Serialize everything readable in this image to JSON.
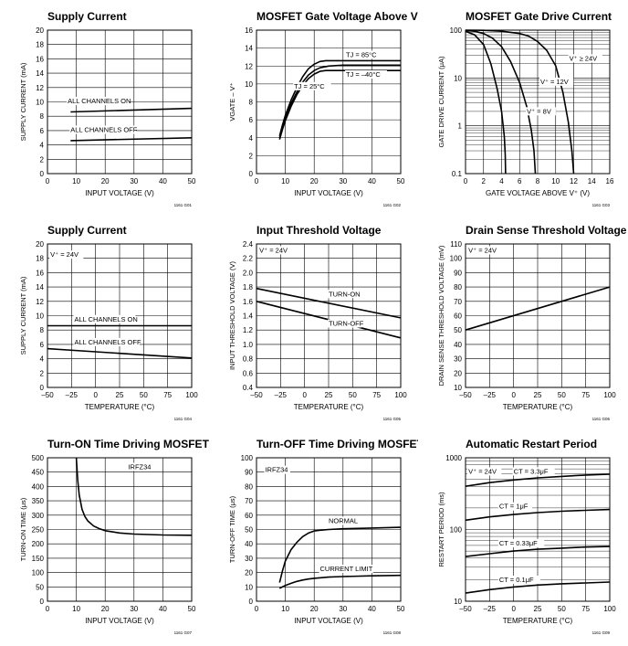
{
  "chart_data": [
    {
      "id": "c1",
      "type": "line",
      "title": "Supply Current",
      "xlabel": "INPUT VOLTAGE (V)",
      "ylabel": "SUPPLY CURRENT (mA)",
      "xlim": [
        0,
        50
      ],
      "ylim": [
        0,
        20
      ],
      "xticks": [
        "0",
        "10",
        "20",
        "30",
        "40",
        "50"
      ],
      "yticks": [
        "0",
        "2",
        "4",
        "6",
        "8",
        "10",
        "12",
        "14",
        "16",
        "18",
        "20"
      ],
      "grid": true,
      "code": "1161 G01",
      "series": [
        {
          "name": "ALL CHANNELS ON",
          "x": [
            8,
            50
          ],
          "y": [
            8.6,
            9.1
          ]
        },
        {
          "name": "ALL CHANNELS OFF",
          "x": [
            8,
            50
          ],
          "y": [
            4.6,
            5.0
          ]
        }
      ]
    },
    {
      "id": "c2",
      "type": "line",
      "title": "MOSFET Gate Voltage Above V⁺",
      "xlabel": "INPUT VOLTAGE (V)",
      "ylabel": "VGATE – V⁺",
      "xlim": [
        0,
        50
      ],
      "ylim": [
        0,
        16
      ],
      "xticks": [
        "0",
        "10",
        "20",
        "30",
        "40",
        "50"
      ],
      "yticks": [
        "0",
        "2",
        "4",
        "6",
        "8",
        "10",
        "12",
        "14",
        "16"
      ],
      "grid": true,
      "code": "1161 G02",
      "series": [
        {
          "name": "TJ = 85°C",
          "x": [
            8,
            9,
            10,
            12,
            14,
            16,
            18,
            20,
            22,
            24,
            28,
            35,
            50
          ],
          "y": [
            4.2,
            5.4,
            6.5,
            8.2,
            9.6,
            10.8,
            11.7,
            12.2,
            12.5,
            12.6,
            12.6,
            12.6,
            12.6
          ]
        },
        {
          "name": "TJ = –40°C",
          "x": [
            8,
            9,
            10,
            12,
            14,
            16,
            18,
            20,
            22,
            25,
            30,
            40,
            50
          ],
          "y": [
            4.0,
            5.1,
            6.2,
            7.8,
            9.1,
            10.2,
            11.0,
            11.5,
            11.8,
            12.0,
            12.1,
            12.1,
            12.1
          ]
        },
        {
          "name": "TJ = 25°C",
          "x": [
            8,
            9,
            10,
            12,
            14,
            16,
            18,
            20,
            22,
            24,
            28,
            35,
            50
          ],
          "y": [
            3.8,
            4.9,
            5.9,
            7.5,
            8.8,
            9.8,
            10.6,
            11.1,
            11.4,
            11.5,
            11.5,
            11.5,
            11.5
          ]
        }
      ]
    },
    {
      "id": "c3",
      "type": "line",
      "title": "MOSFET Gate Drive Current",
      "xlabel": "GATE VOLTAGE ABOVE V⁺ (V)",
      "ylabel": "GATE DRIVE CURRENT (μA)",
      "xlim": [
        0,
        16
      ],
      "ylim": [
        0.1,
        100
      ],
      "yscale": "log",
      "xticks": [
        "0",
        "2",
        "4",
        "6",
        "8",
        "10",
        "12",
        "14",
        "16"
      ],
      "yticks": [
        "0.1",
        "1",
        "10",
        "100"
      ],
      "grid": true,
      "code": "1161 G03",
      "series": [
        {
          "name": "V⁺ = 8V",
          "x": [
            0,
            1,
            2,
            2.8,
            3.5,
            4.0,
            4.3,
            4.4,
            4.45
          ],
          "y": [
            95,
            80,
            50,
            20,
            6,
            2,
            0.6,
            0.25,
            0.1
          ]
        },
        {
          "name": "V⁺ = 12V",
          "x": [
            0,
            1,
            2,
            3,
            4,
            5,
            6,
            6.8,
            7.3,
            7.6,
            7.75
          ],
          "y": [
            98,
            95,
            85,
            68,
            45,
            22,
            8,
            2.5,
            0.8,
            0.3,
            0.1
          ]
        },
        {
          "name": "V⁺ ≥ 24V",
          "x": [
            0,
            2,
            4,
            6,
            7,
            8,
            9,
            10,
            10.8,
            11.4,
            11.8,
            12.0
          ],
          "y": [
            100,
            99,
            95,
            85,
            75,
            58,
            38,
            18,
            5,
            1.2,
            0.3,
            0.1
          ]
        }
      ]
    },
    {
      "id": "c4",
      "type": "line",
      "title": "Supply Current",
      "xlabel": "TEMPERATURE (°C)",
      "ylabel": "SUPPLY CURRENT (mA)",
      "xlim": [
        -50,
        100
      ],
      "ylim": [
        0,
        20
      ],
      "xticks": [
        "–50",
        "–25",
        "0",
        "25",
        "50",
        "75",
        "100"
      ],
      "yticks": [
        "0",
        "2",
        "4",
        "6",
        "8",
        "10",
        "12",
        "14",
        "16",
        "18",
        "20"
      ],
      "grid": true,
      "code": "1161 G04",
      "annotation": "V⁺ = 24V",
      "series": [
        {
          "name": "ALL CHANNELS ON",
          "x": [
            -50,
            100
          ],
          "y": [
            8.6,
            8.6
          ]
        },
        {
          "name": "ALL CHANNELS OFF",
          "x": [
            -50,
            100
          ],
          "y": [
            5.4,
            4.1
          ]
        }
      ]
    },
    {
      "id": "c5",
      "type": "line",
      "title": "Input Threshold Voltage",
      "xlabel": "TEMPERATURE (°C)",
      "ylabel": "INPUT THRESHOLD VOLTAGE (V)",
      "xlim": [
        -50,
        100
      ],
      "ylim": [
        0.4,
        2.4
      ],
      "xticks": [
        "–50",
        "–25",
        "0",
        "25",
        "50",
        "75",
        "100"
      ],
      "yticks": [
        "0.4",
        "0.6",
        "0.8",
        "1.0",
        "1.2",
        "1.4",
        "1.6",
        "1.8",
        "2.0",
        "2.2",
        "2.4"
      ],
      "grid": true,
      "code": "1161 G05",
      "annotation": "V⁺ = 24V",
      "series": [
        {
          "name": "TURN-ON",
          "x": [
            -50,
            100
          ],
          "y": [
            1.78,
            1.37
          ]
        },
        {
          "name": "TURN-OFF",
          "x": [
            -50,
            100
          ],
          "y": [
            1.6,
            1.09
          ]
        }
      ]
    },
    {
      "id": "c6",
      "type": "line",
      "title": "Drain Sense Threshold Voltage",
      "xlabel": "TEMPERATURE (°C)",
      "ylabel": "DRAIN SENSE THRESHOLD VOLTAGE (mV)",
      "xlim": [
        -50,
        100
      ],
      "ylim": [
        10,
        110
      ],
      "xticks": [
        "–50",
        "–25",
        "0",
        "25",
        "50",
        "75",
        "100"
      ],
      "yticks": [
        "10",
        "20",
        "30",
        "40",
        "50",
        "60",
        "70",
        "80",
        "90",
        "100",
        "110"
      ],
      "grid": true,
      "code": "1161 G06",
      "annotation": "V⁺ = 24V",
      "series": [
        {
          "name": "",
          "x": [
            -50,
            100
          ],
          "y": [
            50,
            80
          ]
        }
      ]
    },
    {
      "id": "c7",
      "type": "line",
      "title": "Turn-ON Time Driving MOSFET",
      "xlabel": "INPUT VOLTAGE (V)",
      "ylabel": "TURN-ON TIME (μs)",
      "xlim": [
        0,
        50
      ],
      "ylim": [
        0,
        500
      ],
      "xticks": [
        "0",
        "10",
        "20",
        "30",
        "40",
        "50"
      ],
      "yticks": [
        "0",
        "50",
        "100",
        "150",
        "200",
        "250",
        "300",
        "350",
        "400",
        "450",
        "500"
      ],
      "grid": true,
      "code": "1161 G07",
      "annotation": "IRFZ34",
      "series": [
        {
          "name": "",
          "x": [
            10,
            10.5,
            11,
            12,
            13,
            14,
            16,
            18,
            20,
            25,
            30,
            40,
            50
          ],
          "y": [
            500,
            420,
            370,
            320,
            295,
            280,
            262,
            253,
            246,
            238,
            234,
            231,
            230
          ]
        }
      ]
    },
    {
      "id": "c8",
      "type": "line",
      "title": "Turn-OFF Time Driving MOSFET",
      "xlabel": "INPUT VOLTAGE (V)",
      "ylabel": "TURN-OFF TIME (μs)",
      "xlim": [
        0,
        50
      ],
      "ylim": [
        0,
        100
      ],
      "xticks": [
        "0",
        "10",
        "20",
        "30",
        "40",
        "50"
      ],
      "yticks": [
        "0",
        "10",
        "20",
        "30",
        "40",
        "50",
        "60",
        "70",
        "80",
        "90",
        "100"
      ],
      "grid": true,
      "code": "1161 G08",
      "annotation": "IRFZ34",
      "series": [
        {
          "name": "NORMAL",
          "x": [
            8,
            9,
            10,
            12,
            14,
            16,
            18,
            20,
            22,
            25,
            30,
            40,
            50
          ],
          "y": [
            13,
            21,
            28,
            36,
            41,
            45,
            47.5,
            49,
            49.5,
            50,
            50.5,
            51,
            51.5
          ]
        },
        {
          "name": "CURRENT LIMIT",
          "x": [
            8,
            10,
            12,
            14,
            16,
            18,
            20,
            25,
            30,
            40,
            50
          ],
          "y": [
            9,
            11,
            12.5,
            13.8,
            14.8,
            15.5,
            16,
            16.8,
            17.2,
            17.7,
            18
          ]
        }
      ]
    },
    {
      "id": "c9",
      "type": "line",
      "title": "Automatic Restart Period",
      "xlabel": "TEMPERATURE (°C)",
      "ylabel": "RESTART PERIOD (ms)",
      "xlim": [
        -50,
        100
      ],
      "ylim": [
        10,
        1000
      ],
      "yscale": "log",
      "xticks": [
        "–50",
        "–25",
        "0",
        "25",
        "50",
        "75",
        "100"
      ],
      "yticks": [
        "10",
        "100",
        "1000"
      ],
      "grid": true,
      "code": "1161 G09",
      "annotation": "V⁺ = 24V",
      "series": [
        {
          "name": "CT = 3.3μF",
          "x": [
            -50,
            -25,
            0,
            25,
            50,
            75,
            100
          ],
          "y": [
            400,
            450,
            490,
            525,
            550,
            575,
            590
          ]
        },
        {
          "name": "CT = 1μF",
          "x": [
            -50,
            -25,
            0,
            25,
            50,
            75,
            100
          ],
          "y": [
            135,
            150,
            162,
            172,
            180,
            185,
            190
          ]
        },
        {
          "name": "CT = 0.33μF",
          "x": [
            -50,
            -25,
            0,
            25,
            50,
            75,
            100
          ],
          "y": [
            42,
            46,
            50,
            53,
            55,
            57,
            58
          ]
        },
        {
          "name": "CT = 0.1μF",
          "x": [
            -50,
            -25,
            0,
            25,
            50,
            75,
            100
          ],
          "y": [
            13,
            14.5,
            15.8,
            16.8,
            17.5,
            18,
            18.5
          ]
        }
      ]
    }
  ]
}
